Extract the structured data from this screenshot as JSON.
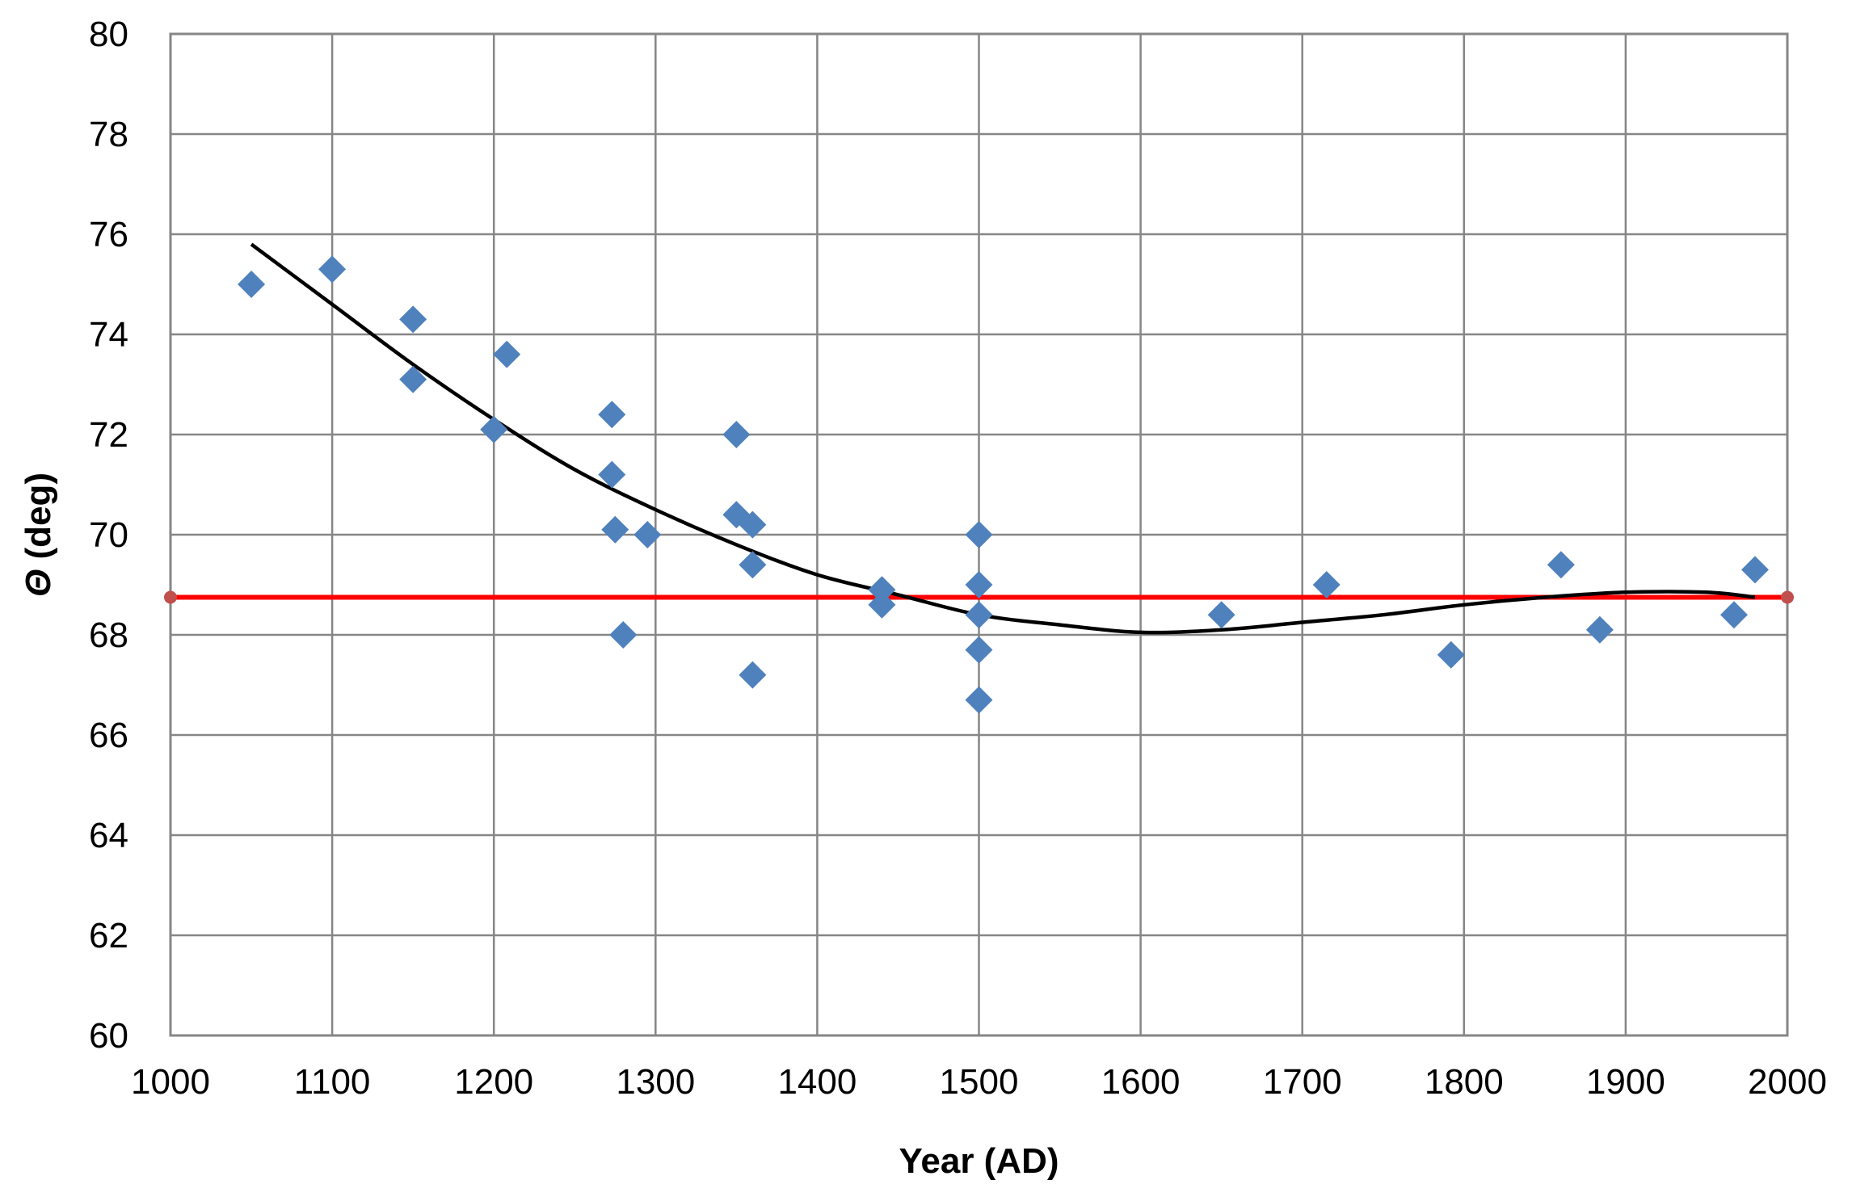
{
  "chart_data": {
    "type": "scatter",
    "xlabel": "Year (AD)",
    "ylabel_symbol": "Θ",
    "ylabel_rest": " (deg)",
    "xlim": [
      1000,
      2000
    ],
    "ylim": [
      60,
      80
    ],
    "x_ticks": [
      1000,
      1100,
      1200,
      1300,
      1400,
      1500,
      1600,
      1700,
      1800,
      1900,
      2000
    ],
    "y_ticks": [
      60,
      62,
      64,
      66,
      68,
      70,
      72,
      74,
      76,
      78,
      80
    ],
    "grid": true,
    "legend": "none",
    "points": [
      {
        "x": 1050,
        "y": 75.0
      },
      {
        "x": 1100,
        "y": 75.3
      },
      {
        "x": 1150,
        "y": 74.3
      },
      {
        "x": 1150,
        "y": 73.1
      },
      {
        "x": 1200,
        "y": 72.1
      },
      {
        "x": 1208,
        "y": 73.6
      },
      {
        "x": 1273,
        "y": 72.4
      },
      {
        "x": 1273,
        "y": 71.2
      },
      {
        "x": 1275,
        "y": 70.1
      },
      {
        "x": 1280,
        "y": 68.0
      },
      {
        "x": 1295,
        "y": 70.0
      },
      {
        "x": 1350,
        "y": 72.0
      },
      {
        "x": 1350,
        "y": 70.4
      },
      {
        "x": 1360,
        "y": 70.2
      },
      {
        "x": 1360,
        "y": 69.4
      },
      {
        "x": 1360,
        "y": 67.2
      },
      {
        "x": 1440,
        "y": 68.9
      },
      {
        "x": 1440,
        "y": 68.6
      },
      {
        "x": 1500,
        "y": 70.0
      },
      {
        "x": 1500,
        "y": 69.0
      },
      {
        "x": 1500,
        "y": 68.4
      },
      {
        "x": 1500,
        "y": 67.7
      },
      {
        "x": 1500,
        "y": 66.7
      },
      {
        "x": 1650,
        "y": 68.4
      },
      {
        "x": 1715,
        "y": 69.0
      },
      {
        "x": 1792,
        "y": 67.6
      },
      {
        "x": 1860,
        "y": 69.4
      },
      {
        "x": 1884,
        "y": 68.1
      },
      {
        "x": 1967,
        "y": 68.4
      },
      {
        "x": 1980,
        "y": 69.3
      }
    ],
    "trend_curve": [
      {
        "x": 1050,
        "y": 75.8
      },
      {
        "x": 1100,
        "y": 74.6
      },
      {
        "x": 1150,
        "y": 73.4
      },
      {
        "x": 1200,
        "y": 72.3
      },
      {
        "x": 1250,
        "y": 71.3
      },
      {
        "x": 1300,
        "y": 70.5
      },
      {
        "x": 1350,
        "y": 69.8
      },
      {
        "x": 1400,
        "y": 69.2
      },
      {
        "x": 1450,
        "y": 68.8
      },
      {
        "x": 1500,
        "y": 68.4
      },
      {
        "x": 1550,
        "y": 68.2
      },
      {
        "x": 1600,
        "y": 68.05
      },
      {
        "x": 1650,
        "y": 68.1
      },
      {
        "x": 1700,
        "y": 68.25
      },
      {
        "x": 1750,
        "y": 68.4
      },
      {
        "x": 1800,
        "y": 68.6
      },
      {
        "x": 1850,
        "y": 68.75
      },
      {
        "x": 1900,
        "y": 68.85
      },
      {
        "x": 1950,
        "y": 68.85
      },
      {
        "x": 1980,
        "y": 68.75
      }
    ],
    "reference_line": {
      "x": [
        1000,
        2000
      ],
      "y": 68.75
    },
    "colors": {
      "points": "#4f81bd",
      "trend": "#000000",
      "reference": "#ff0000",
      "reference_ends": "#c0504d",
      "grid": "#868686"
    }
  }
}
